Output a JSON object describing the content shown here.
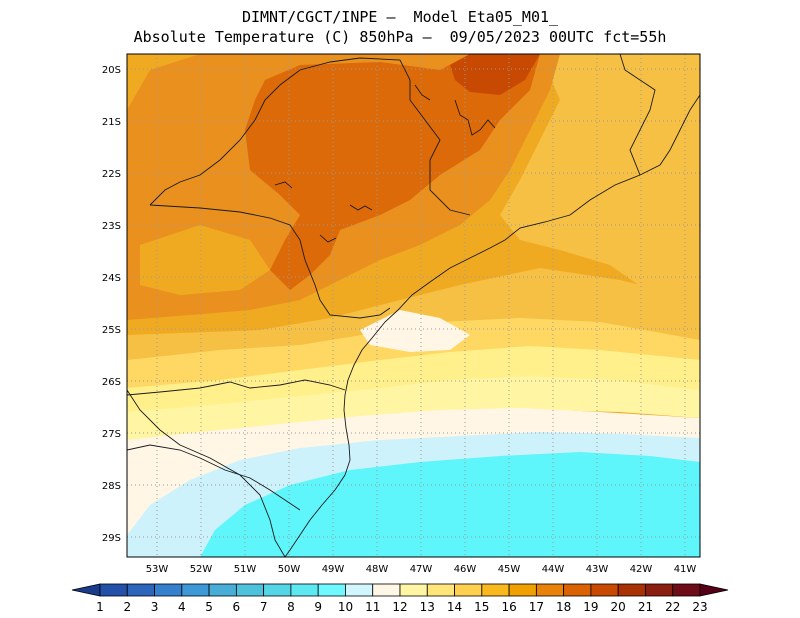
{
  "title": {
    "line1": "DIMNT/CGCT/INPE –  Model Eta05_M01_",
    "line2": "Absolute Temperature (C) 850hPa –  09/05/2023 00UTC fct=55h"
  },
  "map": {
    "lon_range": [
      -53.8,
      -40.5
    ],
    "lat_range": [
      -29.45,
      -19.65
    ],
    "y_ticks": [
      "20S",
      "21S",
      "22S",
      "23S",
      "24S",
      "25S",
      "26S",
      "27S",
      "28S",
      "29S"
    ],
    "x_ticks": [
      "53W",
      "52W",
      "51W",
      "50W",
      "49W",
      "48W",
      "47W",
      "46W",
      "45W",
      "44W",
      "43W",
      "42W",
      "41W"
    ],
    "grid": "dotted"
  },
  "colorbar": {
    "labels": [
      "1",
      "2",
      "3",
      "4",
      "5",
      "6",
      "7",
      "8",
      "9",
      "10",
      "11",
      "12",
      "13",
      "14",
      "15",
      "16",
      "17",
      "18",
      "19",
      "20",
      "21",
      "22",
      "23"
    ],
    "colors": [
      "#1a3a8c",
      "#2350a8",
      "#2b66bc",
      "#357fcf",
      "#3f98d6",
      "#48aed8",
      "#4ec2dc",
      "#55d6e6",
      "#5ee9f2",
      "#6ff8ff",
      "#d2f6ff",
      "#fff7e5",
      "#fff5a4",
      "#ffe57a",
      "#ffd04e",
      "#f9b81e",
      "#f0a000",
      "#e8820a",
      "#da6200",
      "#c84a02",
      "#a83206",
      "#8a1e10",
      "#6e0c18",
      "#560018"
    ],
    "level_colors": {
      "t9_10": "#5ef5fb",
      "t10_11": "#cdf2fc",
      "t11_12": "#fff6e6",
      "t12_13": "#fff5a2",
      "t13_14": "#fff08c",
      "t14_15": "#ffd863",
      "t15_16": "#f5c043",
      "t16_17": "#f0aa22",
      "t17_18": "#e9901e",
      "t18_19": "#dc6a08"
    }
  }
}
